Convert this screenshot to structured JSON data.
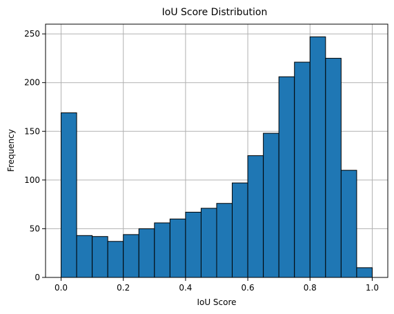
{
  "chart_data": {
    "type": "bar",
    "title": "IoU Score Distribution",
    "xlabel": "IoU Score",
    "ylabel": "Frequency",
    "bin_edges": [
      0.0,
      0.05,
      0.1,
      0.15,
      0.2,
      0.25,
      0.3,
      0.35,
      0.4,
      0.45,
      0.5,
      0.55,
      0.6,
      0.65,
      0.7,
      0.75,
      0.8,
      0.85,
      0.9,
      0.95,
      1.0
    ],
    "values": [
      169,
      43,
      42,
      37,
      44,
      50,
      56,
      60,
      67,
      71,
      76,
      97,
      125,
      148,
      206,
      221,
      247,
      225,
      110,
      10
    ],
    "xlim": [
      -0.05,
      1.05
    ],
    "ylim": [
      0,
      260
    ],
    "x_ticks": [
      0.0,
      0.2,
      0.4,
      0.6,
      0.8,
      1.0
    ],
    "x_tick_labels": [
      "0.0",
      "0.2",
      "0.4",
      "0.6",
      "0.8",
      "1.0"
    ],
    "y_ticks": [
      0,
      50,
      100,
      150,
      200,
      250
    ],
    "y_tick_labels": [
      "0",
      "50",
      "100",
      "150",
      "200",
      "250"
    ],
    "grid": true,
    "bar_color": "#1f77b4",
    "edge_color": "#000000"
  }
}
